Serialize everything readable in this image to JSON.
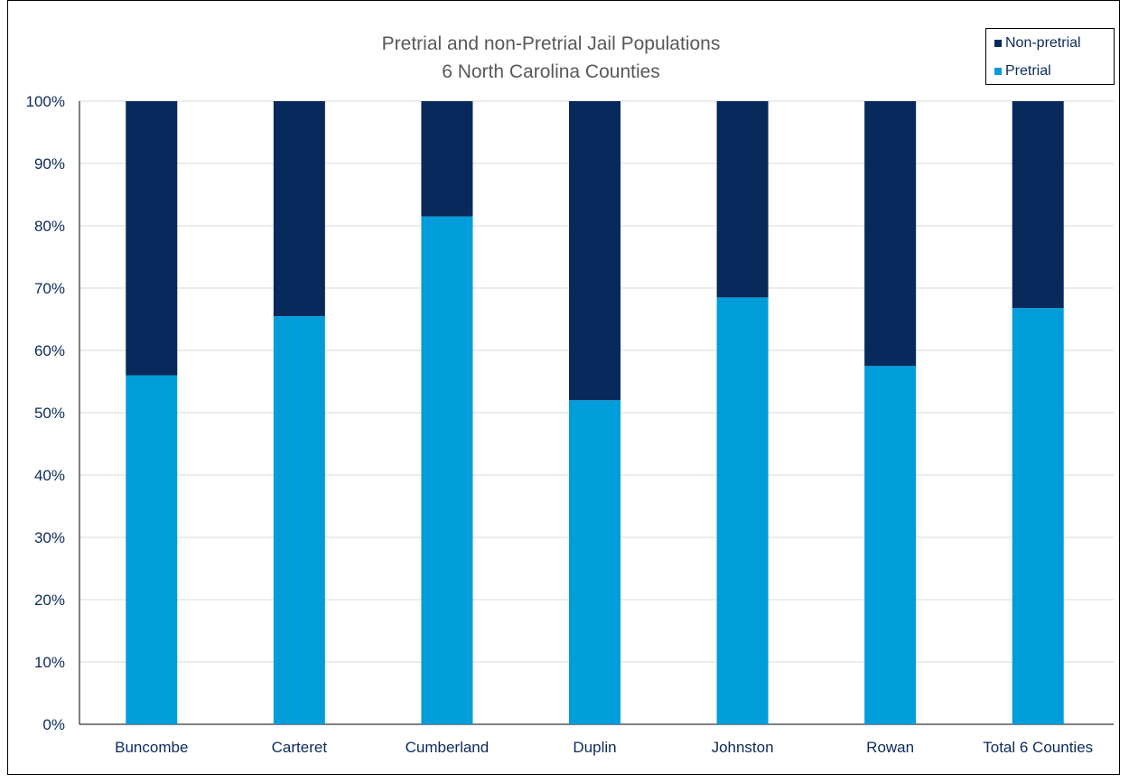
{
  "chart_data": {
    "type": "bar",
    "stacked": true,
    "title": "Pretrial and non-Pretrial Jail Populations",
    "subtitle": "6 North Carolina Counties",
    "categories": [
      "Buncombe",
      "Carteret",
      "Cumberland",
      "Duplin",
      "Johnston",
      "Rowan",
      "Total 6 Counties"
    ],
    "series": [
      {
        "name": "Pretrial",
        "color": "#009ddb",
        "values": [
          56,
          65.5,
          81.5,
          52,
          68.5,
          57.5,
          66.8
        ]
      },
      {
        "name": "Non-pretrial",
        "color": "#08295b",
        "values": [
          44,
          34.5,
          18.5,
          48,
          31.5,
          42.5,
          33.2
        ]
      }
    ],
    "ylim": [
      0,
      100
    ],
    "yticks": [
      "0%",
      "10%",
      "20%",
      "30%",
      "40%",
      "50%",
      "60%",
      "70%",
      "80%",
      "90%",
      "100%"
    ],
    "grid": true,
    "legend_position": "top-right"
  }
}
